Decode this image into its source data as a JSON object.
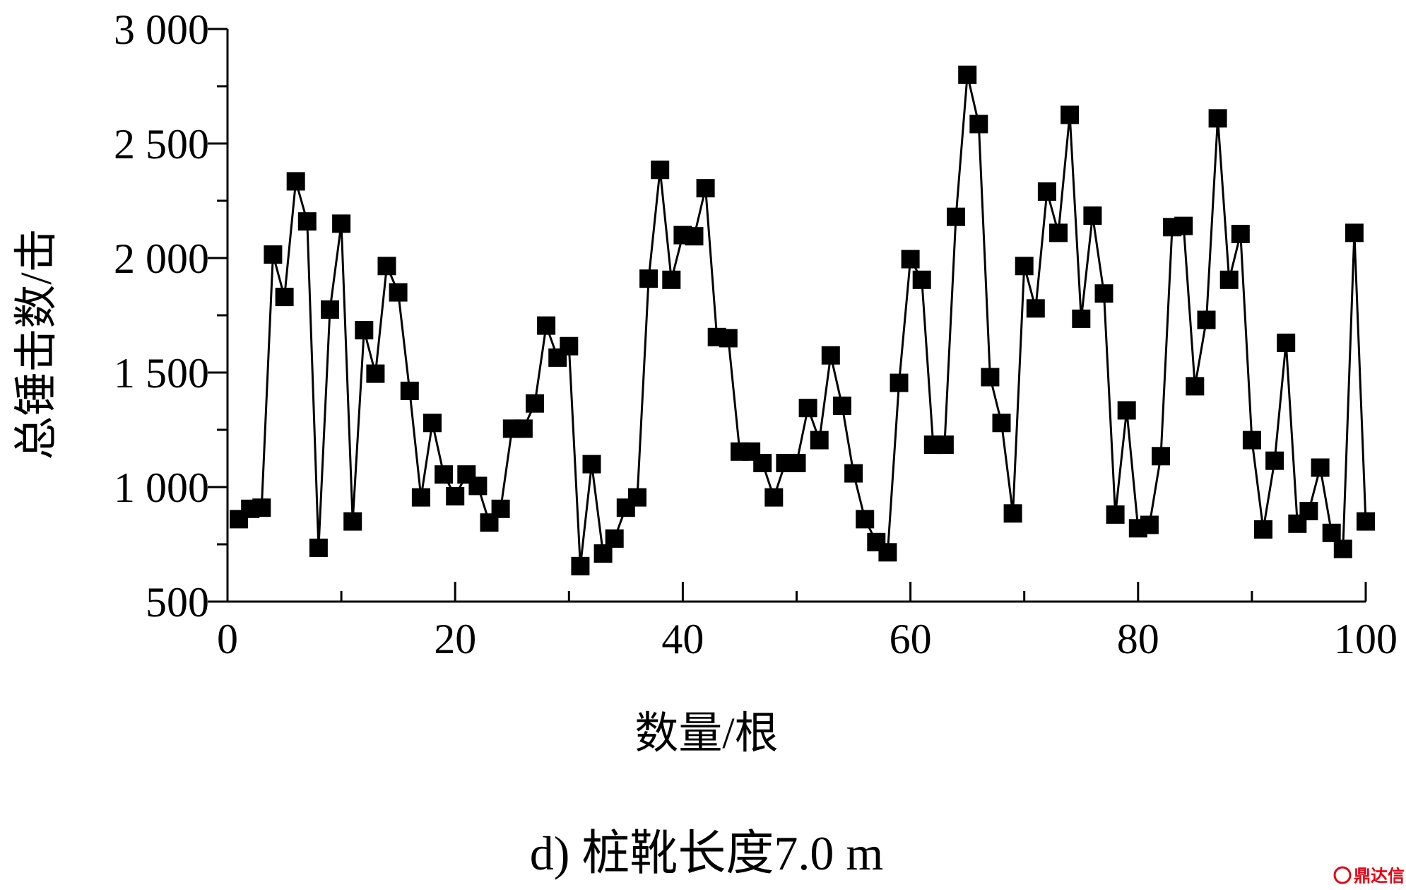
{
  "chart_data": {
    "type": "line",
    "title": "",
    "xlabel": "数量/根",
    "ylabel": "总锤击数/击",
    "caption": "d) 桩靴长度7.0 m",
    "xlim": [
      0,
      100
    ],
    "ylim": [
      500,
      3000
    ],
    "x_ticks": [
      0,
      20,
      40,
      60,
      80,
      100
    ],
    "x_tick_labels": [
      "0",
      "20",
      "40",
      "60",
      "80",
      "100"
    ],
    "y_ticks": [
      500,
      1000,
      1500,
      2000,
      2500,
      3000
    ],
    "y_tick_labels": [
      "500",
      "1 000",
      "1 500",
      "2 000",
      "2 500",
      "3 000"
    ],
    "grid": false,
    "marker": "square",
    "series": [
      {
        "name": "总锤击数",
        "x": [
          1,
          2,
          3,
          4,
          5,
          6,
          7,
          8,
          9,
          10,
          11,
          12,
          13,
          14,
          15,
          16,
          17,
          18,
          19,
          20,
          21,
          22,
          23,
          24,
          25,
          26,
          27,
          28,
          29,
          30,
          31,
          32,
          33,
          34,
          35,
          36,
          37,
          38,
          39,
          40,
          41,
          42,
          43,
          44,
          45,
          46,
          47,
          48,
          49,
          50,
          51,
          52,
          53,
          54,
          55,
          56,
          57,
          58,
          59,
          60,
          61,
          62,
          63,
          64,
          65,
          66,
          67,
          68,
          69,
          70,
          71,
          72,
          73,
          74,
          75,
          76,
          77,
          78,
          79,
          80,
          81,
          82,
          83,
          84,
          85,
          86,
          87,
          88,
          89,
          90,
          91,
          92,
          93,
          94,
          95,
          96,
          97,
          98,
          99,
          100
        ],
        "values": [
          860,
          905,
          910,
          2015,
          1830,
          2335,
          2160,
          735,
          1775,
          2150,
          850,
          1685,
          1495,
          1965,
          1850,
          1420,
          955,
          1280,
          1055,
          960,
          1055,
          1005,
          845,
          905,
          1255,
          1255,
          1365,
          1705,
          1565,
          1615,
          655,
          1100,
          710,
          775,
          910,
          955,
          1910,
          2385,
          1905,
          2100,
          2095,
          2305,
          1655,
          1650,
          1155,
          1155,
          1105,
          955,
          1105,
          1105,
          1345,
          1205,
          1575,
          1355,
          1060,
          860,
          760,
          715,
          1455,
          1995,
          1905,
          1185,
          1185,
          2180,
          2800,
          2585,
          1480,
          1280,
          885,
          1965,
          1780,
          2290,
          2110,
          2625,
          1735,
          2185,
          1845,
          880,
          1335,
          820,
          835,
          1135,
          2135,
          2140,
          1440,
          1730,
          2610,
          1905,
          2105,
          1205,
          815,
          1115,
          1630,
          840,
          895,
          1085,
          800,
          730,
          2110,
          850
        ]
      }
    ]
  },
  "watermark": {
    "text": "鼎达信",
    "color": "#e60012"
  }
}
